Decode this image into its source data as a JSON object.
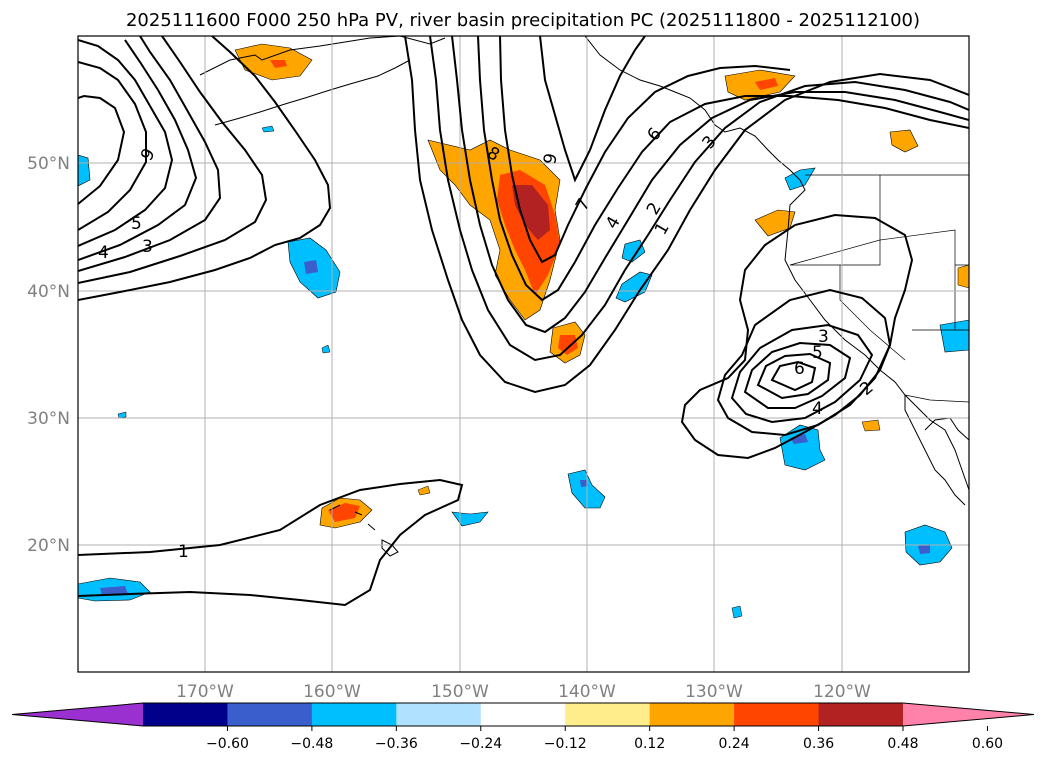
{
  "title": "2025111600 F000 250 hPa PV, river basin precipitation PC (2025111800 - 2025112100)",
  "lat_labels": [
    "50°N",
    "40°N",
    "30°N",
    "20°N"
  ],
  "lon_labels": [
    "170°W",
    "160°W",
    "150°W",
    "140°W",
    "130°W",
    "120°W"
  ],
  "colorbar": {
    "ticks": [
      "−0.60",
      "−0.48",
      "−0.36",
      "−0.24",
      "−0.12",
      "0.12",
      "0.24",
      "0.36",
      "0.48",
      "0.60"
    ],
    "colors": [
      "#9b30d0",
      "#00008b",
      "#3a5fcd",
      "#00bfff",
      "#b0e2ff",
      "#ffffff",
      "#ffec8b",
      "#ffa500",
      "#ff4500",
      "#b22222",
      "#ff82ab"
    ],
    "extend": "both"
  },
  "contour_labels": [
    "9",
    "5",
    "4",
    "3",
    "8",
    "9",
    "7",
    "6",
    "4",
    "3",
    "2",
    "1",
    "3",
    "5",
    "6",
    "4",
    "2",
    "1"
  ],
  "colors": {
    "contour": "#000000",
    "grid": "#b0b0b0",
    "coast": "#000000"
  }
}
